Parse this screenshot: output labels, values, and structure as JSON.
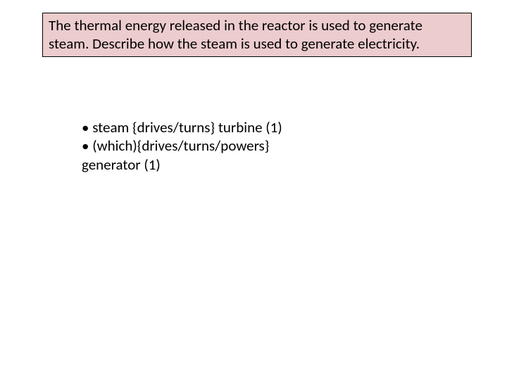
{
  "question": {
    "line1": "The thermal energy released in the reactor is used to generate",
    "line2": "steam. Describe how the steam is used to generate electricity."
  },
  "answer": {
    "line1": "• steam {drives/turns} turbine (1)",
    "line2": "• (which){drives/turns/powers}",
    "line3": "generator (1)"
  },
  "colors": {
    "question_bg": "#eccccd",
    "question_border": "#000000",
    "text": "#000000",
    "page_bg": "#ffffff"
  },
  "typography": {
    "font_family": "Calibri",
    "font_size_pt": 16
  }
}
